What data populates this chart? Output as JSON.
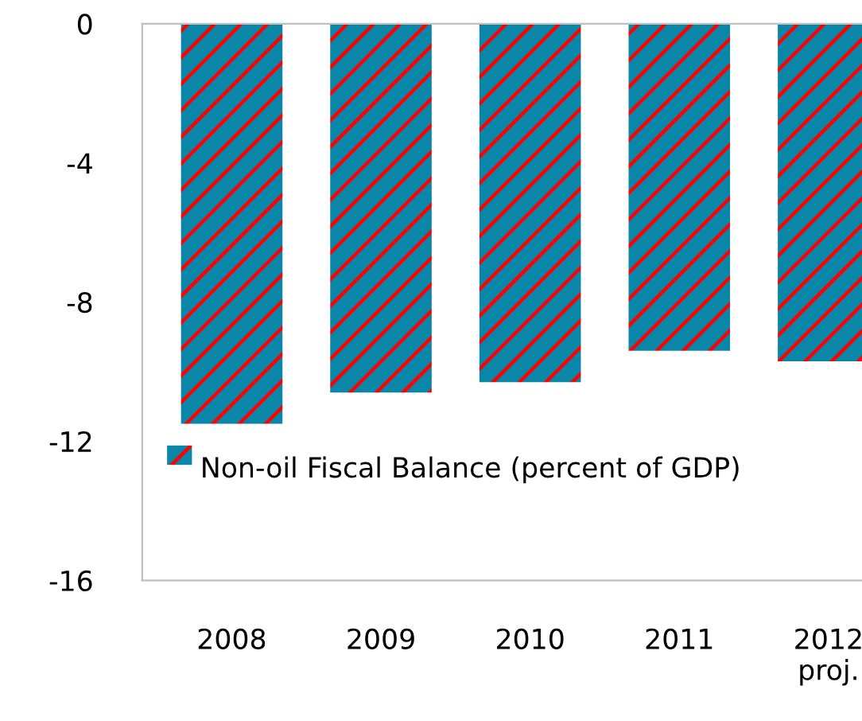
{
  "chart_data": {
    "type": "bar",
    "categories": [
      "2008",
      "2009",
      "2010",
      "2011",
      "2012\nproj."
    ],
    "series": [
      {
        "name": "Non-oil Fiscal Balance (percent of GDP)",
        "color": "#0a86a8",
        "values": [
          -11.5,
          -10.6,
          -10.3,
          -9.4,
          -9.7
        ]
      }
    ],
    "ylim": [
      -16,
      0
    ],
    "yticks": [
      -16,
      -12,
      -8,
      -4,
      0
    ],
    "grid": false,
    "legend": "bottom left"
  }
}
